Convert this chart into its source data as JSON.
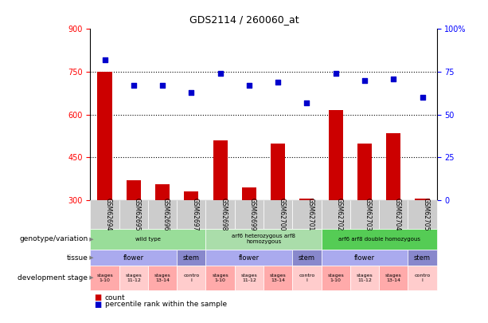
{
  "title": "GDS2114 / 260060_at",
  "samples": [
    "GSM62694",
    "GSM62695",
    "GSM62696",
    "GSM62697",
    "GSM62698",
    "GSM62699",
    "GSM62700",
    "GSM62701",
    "GSM62702",
    "GSM62703",
    "GSM62704",
    "GSM62705"
  ],
  "counts": [
    750,
    370,
    355,
    330,
    510,
    345,
    500,
    305,
    615,
    500,
    535,
    305
  ],
  "percentile": [
    82,
    67,
    67,
    63,
    74,
    67,
    69,
    57,
    74,
    70,
    71,
    60
  ],
  "ylim_left": [
    300,
    900
  ],
  "ylim_right": [
    0,
    100
  ],
  "yticks_left": [
    300,
    450,
    600,
    750,
    900
  ],
  "yticks_right": [
    0,
    25,
    50,
    75,
    100
  ],
  "bar_color": "#cc0000",
  "dot_color": "#0000cc",
  "genotype_groups": [
    {
      "label": "wild type",
      "start": 0,
      "end": 4,
      "color": "#99dd99"
    },
    {
      "label": "arf6 heterozygous arf8\nhomozygous",
      "start": 4,
      "end": 8,
      "color": "#aaddaa"
    },
    {
      "label": "arf6 arf8 double homozygous",
      "start": 8,
      "end": 12,
      "color": "#55cc55"
    }
  ],
  "tissue_groups": [
    {
      "label": "flower",
      "start": 0,
      "end": 3,
      "color": "#aaaaee"
    },
    {
      "label": "stem",
      "start": 3,
      "end": 4,
      "color": "#8888cc"
    },
    {
      "label": "flower",
      "start": 4,
      "end": 7,
      "color": "#aaaaee"
    },
    {
      "label": "stem",
      "start": 7,
      "end": 8,
      "color": "#8888cc"
    },
    {
      "label": "flower",
      "start": 8,
      "end": 11,
      "color": "#aaaaee"
    },
    {
      "label": "stem",
      "start": 11,
      "end": 12,
      "color": "#8888cc"
    }
  ],
  "stage_groups": [
    {
      "label": "stages\n1-10",
      "start": 0,
      "end": 1,
      "color": "#ffaaaa"
    },
    {
      "label": "stages\n11-12",
      "start": 1,
      "end": 2,
      "color": "#ffcccc"
    },
    {
      "label": "stages\n13-14",
      "start": 2,
      "end": 3,
      "color": "#ffaaaa"
    },
    {
      "label": "contro\nl",
      "start": 3,
      "end": 4,
      "color": "#ffcccc"
    },
    {
      "label": "stages\n1-10",
      "start": 4,
      "end": 5,
      "color": "#ffaaaa"
    },
    {
      "label": "stages\n11-12",
      "start": 5,
      "end": 6,
      "color": "#ffcccc"
    },
    {
      "label": "stages\n13-14",
      "start": 6,
      "end": 7,
      "color": "#ffaaaa"
    },
    {
      "label": "contro\nl",
      "start": 7,
      "end": 8,
      "color": "#ffcccc"
    },
    {
      "label": "stages\n1-10",
      "start": 8,
      "end": 9,
      "color": "#ffaaaa"
    },
    {
      "label": "stages\n11-12",
      "start": 9,
      "end": 10,
      "color": "#ffcccc"
    },
    {
      "label": "stages\n13-14",
      "start": 10,
      "end": 11,
      "color": "#ffaaaa"
    },
    {
      "label": "contro\nl",
      "start": 11,
      "end": 12,
      "color": "#ffcccc"
    }
  ],
  "row_labels": [
    "genotype/variation",
    "tissue",
    "development stage"
  ],
  "legend_items": [
    {
      "label": "count",
      "color": "#cc0000"
    },
    {
      "label": "percentile rank within the sample",
      "color": "#0000cc"
    }
  ],
  "sample_bg": "#cccccc"
}
